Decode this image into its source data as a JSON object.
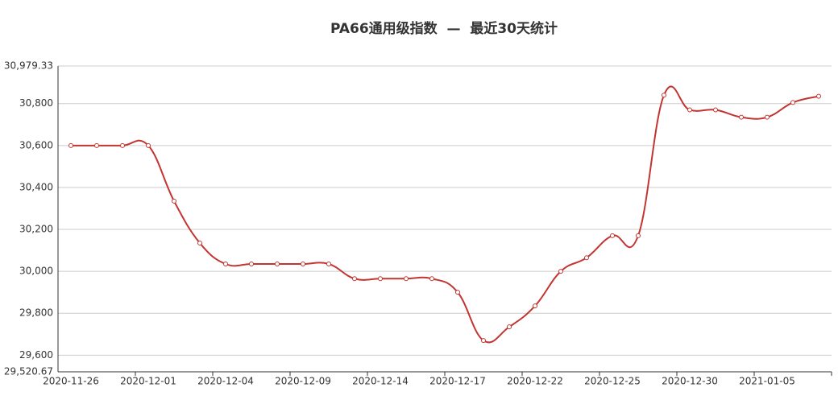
{
  "chart_data": {
    "type": "line",
    "title": "PA66通用级指数  —  最近30天统计",
    "categories": [
      "2020-11-26",
      null,
      null,
      "2020-12-01",
      null,
      null,
      "2020-12-04",
      null,
      null,
      "2020-12-09",
      null,
      null,
      "2020-12-14",
      null,
      null,
      "2020-12-17",
      null,
      null,
      "2020-12-22",
      null,
      null,
      "2020-12-25",
      null,
      null,
      "2020-12-30",
      null,
      null,
      "2021-01-05",
      null,
      null
    ],
    "values": [
      30600,
      30600,
      30600,
      30600,
      30335,
      30135,
      30035,
      30035,
      30035,
      30035,
      30035,
      29965,
      29965,
      29965,
      29965,
      29900,
      29670,
      29735,
      29835,
      30000,
      30065,
      30170,
      30170,
      30840,
      30770,
      30770,
      30735,
      30735,
      30805,
      30835
    ],
    "color": "#c23531",
    "ylim": [
      29520.67,
      30979.33
    ],
    "yticks": [
      {
        "value": 29520.67,
        "label": "29,520.67"
      },
      {
        "value": 29600,
        "label": "29,600"
      },
      {
        "value": 29800,
        "label": "29,800"
      },
      {
        "value": 30000,
        "label": "30,000"
      },
      {
        "value": 30200,
        "label": "30,200"
      },
      {
        "value": 30400,
        "label": "30,400"
      },
      {
        "value": 30600,
        "label": "30,600"
      },
      {
        "value": 30800,
        "label": "30,800"
      },
      {
        "value": 30979.33,
        "label": "30,979.33"
      }
    ],
    "grid": true
  }
}
